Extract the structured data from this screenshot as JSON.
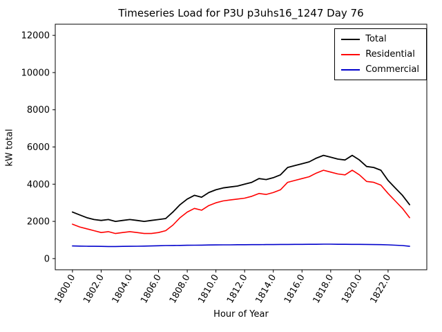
{
  "chart_data": {
    "type": "line",
    "title": "Timeseries Load for P3U p3uhs16_1247  Day 76",
    "xlabel": "Hour of Year",
    "ylabel": "kW total",
    "xlim": [
      1798.8,
      1824.7
    ],
    "ylim": [
      -600,
      12600
    ],
    "yticks": [
      0,
      2000,
      4000,
      6000,
      8000,
      10000,
      12000
    ],
    "ytick_labels": [
      "0",
      "2000",
      "4000",
      "6000",
      "8000",
      "10000",
      "12000"
    ],
    "xticks": [
      1800,
      1802,
      1804,
      1806,
      1808,
      1810,
      1812,
      1814,
      1816,
      1818,
      1820,
      1822
    ],
    "xtick_labels": [
      "1800.0",
      "1802.0",
      "1804.0",
      "1806.0",
      "1808.0",
      "1810.0",
      "1812.0",
      "1814.0",
      "1816.0",
      "1818.0",
      "1820.0",
      "1822.0"
    ],
    "grid": false,
    "legend_position": "upper right",
    "x": [
      1800.0,
      1800.5,
      1801.0,
      1801.5,
      1802.0,
      1802.5,
      1803.0,
      1803.5,
      1804.0,
      1804.5,
      1805.0,
      1805.5,
      1806.0,
      1806.5,
      1807.0,
      1807.5,
      1808.0,
      1808.5,
      1809.0,
      1809.5,
      1810.0,
      1810.5,
      1811.0,
      1811.5,
      1812.0,
      1812.5,
      1813.0,
      1813.5,
      1814.0,
      1814.5,
      1815.0,
      1815.5,
      1816.0,
      1816.5,
      1817.0,
      1817.5,
      1818.0,
      1818.5,
      1819.0,
      1819.5,
      1820.0,
      1820.5,
      1821.0,
      1821.5,
      1822.0,
      1822.5,
      1823.0,
      1823.5
    ],
    "series": [
      {
        "name": "Total",
        "color": "#000000",
        "linewidth": 1.8,
        "values": [
          2500,
          2350,
          2200,
          2100,
          2050,
          2100,
          2000,
          2050,
          2100,
          2050,
          2000,
          2050,
          2100,
          2150,
          2500,
          2900,
          3200,
          3400,
          3300,
          3550,
          3700,
          3800,
          3850,
          3900,
          4000,
          4100,
          4300,
          4250,
          4350,
          4500,
          4900,
          5000,
          5100,
          5200,
          5400,
          5550,
          5450,
          5350,
          5300,
          5550,
          5300,
          4950,
          4900,
          4750,
          4200,
          3800,
          3400,
          2900
        ]
      },
      {
        "name": "Residential",
        "color": "#ff0000",
        "linewidth": 1.6,
        "values": [
          1850,
          1700,
          1600,
          1500,
          1400,
          1450,
          1350,
          1400,
          1450,
          1400,
          1350,
          1350,
          1400,
          1500,
          1800,
          2200,
          2500,
          2700,
          2600,
          2850,
          3000,
          3100,
          3150,
          3200,
          3250,
          3350,
          3500,
          3450,
          3550,
          3700,
          4100,
          4200,
          4300,
          4400,
          4600,
          4750,
          4650,
          4550,
          4500,
          4750,
          4500,
          4150,
          4100,
          3950,
          3500,
          3100,
          2700,
          2200
        ]
      },
      {
        "name": "Commercial",
        "color": "#0000cc",
        "linewidth": 1.6,
        "values": [
          680,
          670,
          665,
          660,
          655,
          650,
          650,
          655,
          660,
          665,
          670,
          680,
          690,
          700,
          705,
          710,
          715,
          720,
          725,
          730,
          735,
          740,
          740,
          745,
          745,
          750,
          750,
          755,
          755,
          760,
          760,
          765,
          765,
          770,
          770,
          775,
          775,
          770,
          770,
          765,
          765,
          760,
          755,
          750,
          740,
          720,
          700,
          660
        ]
      }
    ]
  }
}
